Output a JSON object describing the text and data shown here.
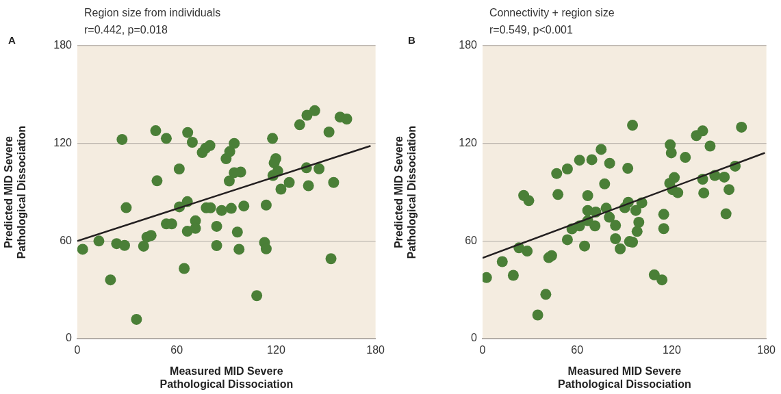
{
  "chart_data": [
    {
      "type": "scatter",
      "title": "Region size from individuals",
      "subtitle": "r=0.442, p=0.018",
      "xlabel": "Measured MID Severe\nPathological Dissociation",
      "ylabel": "Predicted MID Severe\nPathological Dissociation",
      "annotations": [
        "A"
      ],
      "xlim": [
        0,
        180
      ],
      "ylim": [
        0,
        180
      ],
      "xticks": [
        0,
        60,
        120,
        180
      ],
      "yticks": [
        0,
        60,
        120,
        180
      ],
      "grid": "y",
      "marker": "circle",
      "series": [
        {
          "color": "#4a7f37",
          "x": [
            3.2,
            13,
            20,
            23.7,
            28.5,
            27,
            29.5,
            35.7,
            40,
            42,
            44.5,
            47.3,
            48.1,
            53.7,
            53.7,
            57,
            61.5,
            61.6,
            64.5,
            66.6,
            66.4,
            66.4,
            69.4,
            71.3,
            71.3,
            75.4,
            77.4,
            80,
            77.8,
            80.4,
            87.1,
            92.9,
            100.5,
            84.1,
            84.1,
            96.6,
            97.6,
            89.8,
            92,
            94.7,
            91.7,
            94.7,
            98.6,
            108.3,
            114,
            113,
            114,
            117.8,
            119.8,
            118.8,
            121,
            118.1,
            122.9,
            127.9,
            134.2,
            138.6,
            143.3,
            138.3,
            139.5,
            145.9,
            151.9,
            154.7,
            153.1,
            158.6,
            162.6
          ],
          "values": [
            54.9,
            60,
            36.1,
            58.4,
            57.3,
            122.4,
            80.5,
            11.8,
            56.8,
            62.4,
            63.4,
            127.8,
            97,
            123.1,
            70.5,
            70.5,
            104.3,
            81,
            43.1,
            126.7,
            84.2,
            66,
            120.7,
            72.4,
            67.8,
            114.4,
            117,
            118.7,
            80.4,
            80.4,
            78.8,
            80.1,
            81.5,
            69,
            57.2,
            65.5,
            54.9,
            110.6,
            115,
            120,
            96.9,
            102,
            102.4,
            26.4,
            82.1,
            59.1,
            55.2,
            123.1,
            110.6,
            108,
            103,
            100.3,
            91.9,
            96,
            131.5,
            137.3,
            140.1,
            105,
            94,
            104.4,
            127,
            96,
            49.1,
            136.2,
            135
          ]
        },
        {
          "type": "line",
          "color": "#231f20",
          "marker": "none",
          "x": [
            0,
            177
          ],
          "values": [
            60,
            118.5
          ]
        }
      ]
    },
    {
      "type": "scatter",
      "title": "Connectivity + region size",
      "subtitle": "r=0.549, p<0.001",
      "xlabel": "Measured MID Severe\nPathological Dissociation",
      "ylabel": "Predicted MID Severe\nPathological Dissociation",
      "annotations": [
        "B"
      ],
      "xlim": [
        0,
        180
      ],
      "ylim": [
        0,
        180
      ],
      "xticks": [
        0,
        60,
        120,
        180
      ],
      "yticks": [
        0,
        60,
        120,
        180
      ],
      "grid": "y",
      "marker": "circle",
      "series": [
        {
          "color": "#4a7f37",
          "x": [
            2.5,
            12.5,
            19.5,
            23.1,
            28.3,
            26.1,
            29.3,
            40.1,
            35,
            42,
            43.8,
            47,
            47.8,
            53.8,
            53.8,
            56.7,
            61.5,
            61.5,
            64.7,
            66.7,
            66.7,
            71.8,
            66.7,
            71.3,
            69.3,
            75.2,
            77.4,
            80.6,
            78.4,
            80.4,
            84.3,
            84.3,
            87.3,
            92.1,
            95.1,
            90.2,
            92.4,
            93.2,
            95.1,
            97.2,
            101,
            99.1,
            98,
            108.9,
            113.8,
            114.9,
            114.9,
            119,
            119.7,
            128.6,
            118.7,
            121.6,
            120.4,
            123.8,
            135.6,
            139.6,
            144.3,
            139.6,
            140.3,
            147.3,
            153.3,
            156.3,
            154.4,
            160.2,
            164.2
          ],
          "values": [
            37.5,
            47.3,
            38.9,
            55.8,
            53.8,
            88,
            84.8,
            27.2,
            14.5,
            49.8,
            51,
            101.5,
            88.6,
            104.3,
            60.8,
            67.5,
            69.3,
            109.7,
            56.9,
            87.9,
            78.8,
            77.8,
            72.5,
            69.3,
            110,
            116.3,
            95.1,
            107.8,
            80.2,
            74.6,
            69.6,
            61.4,
            55.2,
            104.7,
            131.2,
            80.5,
            83.8,
            59.7,
            59.3,
            78.8,
            83.5,
            71.5,
            65.9,
            39.2,
            36.1,
            76.4,
            67.6,
            119.2,
            114.2,
            111.4,
            95.5,
            99,
            91.6,
            89.7,
            124.8,
            127.7,
            118.4,
            98,
            89.5,
            100.3,
            99.3,
            91.6,
            76.7,
            106,
            130
          ]
        },
        {
          "type": "line",
          "color": "#231f20",
          "marker": "none",
          "x": [
            0,
            179
          ],
          "values": [
            49.6,
            114.2
          ]
        }
      ]
    }
  ]
}
